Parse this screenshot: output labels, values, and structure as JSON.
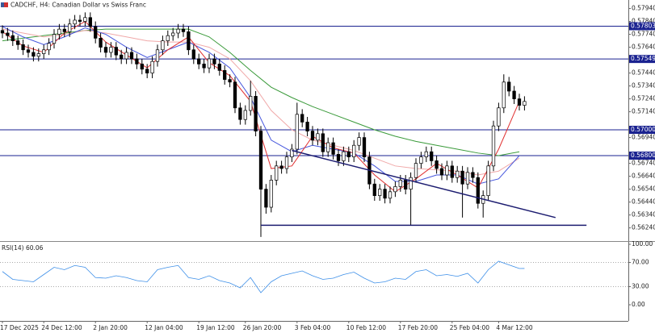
{
  "chart_data": {
    "type": "candlestick",
    "title": "CADCHF, H4:  Canadian Dollar vs Swiss Franc",
    "categories": [
      "17 Dec 2025",
      null,
      null,
      null,
      null,
      null,
      null,
      null,
      "24 Dec 12:00",
      null,
      null,
      null,
      null,
      null,
      null,
      null,
      null,
      null,
      "2 Jan 20:00",
      null,
      null,
      null,
      null,
      null,
      null,
      null,
      null,
      null,
      "12 Jan 04:00",
      null,
      null,
      null,
      null,
      null,
      null,
      null,
      null,
      null,
      "19 Jan 12:00",
      null,
      null,
      null,
      null,
      null,
      null,
      null,
      null,
      "26 Jan 20:00",
      null,
      null,
      null,
      null,
      null,
      null,
      null,
      null,
      null,
      "3 Feb 04:00",
      null,
      null,
      null,
      null,
      null,
      null,
      null,
      null,
      null,
      "10 Feb 12:00",
      null,
      null,
      null,
      null,
      null,
      null,
      null,
      null,
      null,
      "17 Feb 20:00",
      null,
      null,
      null,
      null,
      null,
      null,
      null,
      null,
      null,
      "25 Feb 04:00",
      null,
      null,
      null,
      null,
      null,
      null,
      null,
      null,
      "4 Mar 12:00",
      null,
      null,
      null,
      null,
      null
    ],
    "open": [
      0.5777,
      0.5775,
      0.5773,
      0.5769,
      0.5766,
      0.5762,
      0.576,
      0.5757,
      0.5759,
      0.5762,
      0.5767,
      0.5774,
      0.5778,
      0.5776,
      0.5782,
      0.5785,
      0.5784,
      0.5787,
      0.578,
      0.5771,
      0.5764,
      0.576,
      0.5764,
      0.5758,
      0.5755,
      0.576,
      0.5755,
      0.5751,
      0.5747,
      0.5744,
      0.5753,
      0.5762,
      0.5769,
      0.5773,
      0.5775,
      0.5778,
      0.5776,
      0.5762,
      0.5755,
      0.5751,
      0.5748,
      0.5755,
      0.5751,
      0.5746,
      0.5739,
      0.5737,
      0.5717,
      0.5708,
      0.5715,
      0.5726,
      0.5699,
      0.5654,
      0.564,
      0.5661,
      0.5672,
      0.567,
      0.5679,
      0.5685,
      0.5712,
      0.5706,
      0.5699,
      0.5692,
      0.5697,
      0.5683,
      0.569,
      0.5681,
      0.5676,
      0.5683,
      0.5679,
      0.5688,
      0.5694,
      0.5679,
      0.5658,
      0.5649,
      0.5654,
      0.5647,
      0.5652,
      0.5656,
      0.5661,
      0.5654,
      0.5663,
      0.5674,
      0.5679,
      0.5683,
      0.5676,
      0.567,
      0.5665,
      0.5672,
      0.5663,
      0.5668,
      0.5658,
      0.5667,
      0.5663,
      0.5643,
      0.5649,
      0.5672,
      0.5703,
      0.5717,
      0.5737,
      0.573,
      0.5724,
      0.5719
    ],
    "high": [
      0.5781,
      0.5779,
      0.5777,
      0.5773,
      0.577,
      0.5766,
      0.5764,
      0.5763,
      0.5766,
      0.5771,
      0.5778,
      0.5782,
      0.5782,
      0.5786,
      0.5789,
      0.5789,
      0.5791,
      0.5791,
      0.5784,
      0.5775,
      0.5768,
      0.5768,
      0.5768,
      0.5762,
      0.5764,
      0.5764,
      0.5759,
      0.5755,
      0.5751,
      0.5757,
      0.5766,
      0.5773,
      0.5777,
      0.5779,
      0.5782,
      0.5782,
      0.578,
      0.5766,
      0.5759,
      0.5755,
      0.5759,
      0.5759,
      0.5755,
      0.575,
      0.5743,
      0.5741,
      0.5721,
      0.5719,
      0.5738,
      0.573,
      0.5703,
      0.5658,
      0.5665,
      0.5676,
      0.5676,
      0.5683,
      0.5689,
      0.5721,
      0.5716,
      0.571,
      0.5703,
      0.5701,
      0.5701,
      0.5694,
      0.5694,
      0.5685,
      0.5687,
      0.5687,
      0.5692,
      0.5698,
      0.5698,
      0.5683,
      0.5662,
      0.5658,
      0.5658,
      0.5656,
      0.566,
      0.5665,
      0.5665,
      0.5667,
      0.5678,
      0.5683,
      0.5687,
      0.5687,
      0.568,
      0.5674,
      0.5676,
      0.5676,
      0.5672,
      0.5672,
      0.5671,
      0.5671,
      0.5667,
      0.5653,
      0.5676,
      0.5707,
      0.5721,
      0.5743,
      0.5741,
      0.5734,
      0.5728,
      0.5726
    ],
    "low": [
      0.5771,
      0.5769,
      0.5765,
      0.5762,
      0.5758,
      0.5756,
      0.5753,
      0.5753,
      0.5755,
      0.5758,
      0.5763,
      0.577,
      0.5772,
      0.5772,
      0.5778,
      0.578,
      0.578,
      0.5776,
      0.5767,
      0.576,
      0.5756,
      0.5756,
      0.5754,
      0.5751,
      0.5751,
      0.5751,
      0.5747,
      0.5743,
      0.574,
      0.574,
      0.5749,
      0.5758,
      0.5765,
      0.5769,
      0.5771,
      0.5772,
      0.5758,
      0.5751,
      0.5747,
      0.5744,
      0.5744,
      0.5747,
      0.5742,
      0.5735,
      0.5733,
      0.5713,
      0.5704,
      0.5704,
      0.5711,
      0.5695,
      0.5617,
      0.5635,
      0.5636,
      0.5657,
      0.5666,
      0.5666,
      0.5675,
      0.5681,
      0.5702,
      0.5695,
      0.5688,
      0.5688,
      0.5679,
      0.5679,
      0.5677,
      0.5672,
      0.5672,
      0.5675,
      0.5675,
      0.5684,
      0.5675,
      0.5654,
      0.5645,
      0.5645,
      0.5643,
      0.5643,
      0.5648,
      0.5652,
      0.565,
      0.5626,
      0.5659,
      0.567,
      0.5675,
      0.5672,
      0.5666,
      0.5661,
      0.5661,
      0.5659,
      0.5659,
      0.5632,
      0.5654,
      0.5659,
      0.5639,
      0.5632,
      0.5645,
      0.5668,
      0.5699,
      0.5713,
      0.5726,
      0.572,
      0.5715,
      0.5715
    ],
    "close": [
      0.5775,
      0.5773,
      0.5769,
      0.5766,
      0.5762,
      0.576,
      0.5757,
      0.5759,
      0.5762,
      0.5767,
      0.5774,
      0.5778,
      0.5776,
      0.5782,
      0.5785,
      0.5784,
      0.5787,
      0.578,
      0.5771,
      0.5764,
      0.576,
      0.5764,
      0.5758,
      0.5755,
      0.576,
      0.5755,
      0.5751,
      0.5747,
      0.5744,
      0.5753,
      0.5762,
      0.5769,
      0.5773,
      0.5775,
      0.5778,
      0.5776,
      0.5762,
      0.5755,
      0.5751,
      0.5748,
      0.5755,
      0.5751,
      0.5746,
      0.5739,
      0.5737,
      0.5717,
      0.5708,
      0.5715,
      0.5726,
      0.5699,
      0.5654,
      0.564,
      0.5661,
      0.5672,
      0.567,
      0.5679,
      0.5685,
      0.5712,
      0.5706,
      0.5699,
      0.5692,
      0.5697,
      0.5683,
      0.569,
      0.5681,
      0.5676,
      0.5683,
      0.5679,
      0.5688,
      0.5694,
      0.5679,
      0.5658,
      0.5649,
      0.5654,
      0.5647,
      0.5652,
      0.5656,
      0.5661,
      0.5654,
      0.5663,
      0.5674,
      0.5679,
      0.5683,
      0.5676,
      0.567,
      0.5665,
      0.5672,
      0.5663,
      0.5668,
      0.5658,
      0.5667,
      0.5663,
      0.5643,
      0.5649,
      0.5672,
      0.5703,
      0.5717,
      0.5737,
      0.573,
      0.5724,
      0.5719,
      0.5722
    ],
    "bull_color": "#ffffff",
    "bear_color": "#000000",
    "ylim": [
      0.56144,
      0.58006
    ],
    "yticks": [
      {
        "value": 0.5794,
        "label": "0.57940"
      },
      {
        "value": 0.5784,
        "label": "0.57840"
      },
      {
        "value": 0.5774,
        "label": "0.57740"
      },
      {
        "value": 0.5764,
        "label": "0.57640"
      },
      {
        "value": 0.5744,
        "label": "0.57440"
      },
      {
        "value": 0.5734,
        "label": "0.57340"
      },
      {
        "value": 0.5724,
        "label": "0.57240"
      },
      {
        "value": 0.5714,
        "label": "0.57140"
      },
      {
        "value": 0.5694,
        "label": "0.56940"
      },
      {
        "value": 0.5674,
        "label": "0.56740"
      },
      {
        "value": 0.5664,
        "label": "0.56640"
      },
      {
        "value": 0.5654,
        "label": "0.56540"
      },
      {
        "value": 0.5644,
        "label": "0.56440"
      },
      {
        "value": 0.5634,
        "label": "0.56340"
      },
      {
        "value": 0.5624,
        "label": "0.56240"
      }
    ],
    "levels": [
      0.57803,
      0.57549,
      {
        "value": 0.57,
        "label": "0.57000"
      },
      {
        "value": 0.568,
        "label": "0.56800"
      }
    ],
    "level_color": "#1a2290",
    "moving_averages": [
      {
        "color": "#3a9a3a",
        "x": [
          0,
          4,
          8,
          12,
          16,
          20,
          24,
          28,
          32,
          36,
          40,
          44,
          48,
          52,
          56,
          60,
          64,
          68,
          72,
          76,
          80,
          84,
          88,
          92,
          96,
          100
        ],
        "values": [
          0.5769,
          0.5771,
          0.5773,
          0.5775,
          0.5777,
          0.5778,
          0.5778,
          0.5778,
          0.5778,
          0.5778,
          0.5772,
          0.576,
          0.5746,
          0.5733,
          0.5725,
          0.5718,
          0.5712,
          0.5706,
          0.57,
          0.5695,
          0.5691,
          0.5688,
          0.5685,
          0.5682,
          0.568,
          0.5683
        ]
      },
      {
        "color": "#f0a8a8",
        "x": [
          0,
          4,
          8,
          12,
          16,
          20,
          24,
          28,
          32,
          36,
          40,
          44,
          48,
          52,
          56,
          60,
          64,
          68,
          72,
          76,
          80,
          84,
          88,
          92,
          96,
          100
        ],
        "values": [
          0.5778,
          0.5775,
          0.5772,
          0.5774,
          0.5777,
          0.5775,
          0.5772,
          0.5769,
          0.5768,
          0.5768,
          0.5764,
          0.5755,
          0.5738,
          0.5715,
          0.57,
          0.5692,
          0.5688,
          0.5684,
          0.5678,
          0.5672,
          0.567,
          0.5669,
          0.5668,
          0.5665,
          0.5668,
          0.5678
        ]
      },
      {
        "color": "#4455dd",
        "x": [
          0,
          4,
          8,
          12,
          16,
          20,
          24,
          28,
          32,
          36,
          40,
          44,
          48,
          52,
          56,
          60,
          64,
          68,
          72,
          76,
          80,
          84,
          88,
          92,
          96,
          100
        ],
        "values": [
          0.578,
          0.5772,
          0.5766,
          0.5772,
          0.5779,
          0.5774,
          0.5764,
          0.5756,
          0.5762,
          0.5768,
          0.576,
          0.5748,
          0.5725,
          0.5692,
          0.5683,
          0.5688,
          0.5685,
          0.5682,
          0.5672,
          0.566,
          0.566,
          0.5665,
          0.5665,
          0.5658,
          0.5662,
          0.568
        ]
      },
      {
        "color": "#e03030",
        "x": [
          0,
          4,
          8,
          12,
          16,
          20,
          24,
          28,
          32,
          36,
          40,
          44,
          48,
          52,
          56,
          60,
          64,
          68,
          72,
          76,
          80,
          84,
          88,
          92,
          96,
          100
        ],
        "values": [
          0.5776,
          0.5765,
          0.576,
          0.5775,
          0.5784,
          0.5768,
          0.5758,
          0.5748,
          0.5762,
          0.5772,
          0.5752,
          0.5742,
          0.5722,
          0.567,
          0.5672,
          0.5695,
          0.5686,
          0.5682,
          0.5665,
          0.5652,
          0.5662,
          0.5674,
          0.5665,
          0.5655,
          0.5685,
          0.5722
        ]
      }
    ],
    "trendlines": [
      {
        "color": "#1c1c70",
        "x": [
          56,
          107
        ],
        "values": [
          0.5684,
          0.5632
        ]
      },
      {
        "color": "#1c1c70",
        "x": [
          50,
          113
        ],
        "values": [
          0.5626,
          0.5626
        ]
      }
    ],
    "rsi": {
      "title": "RSI(14) 60.06",
      "color": "#3d8fe8",
      "ylim": [
        0,
        100
      ],
      "yticks": [
        {
          "value": 100,
          "label": "100.00"
        },
        {
          "value": 70,
          "label": "70.00"
        },
        {
          "value": 30,
          "label": "30.00"
        },
        {
          "value": 0,
          "label": "0.00"
        }
      ],
      "levels": [
        70,
        30
      ],
      "x": [
        0,
        2,
        4,
        6,
        8,
        10,
        12,
        14,
        16,
        18,
        20,
        22,
        24,
        26,
        28,
        30,
        32,
        34,
        36,
        38,
        40,
        42,
        44,
        46,
        48,
        50,
        52,
        54,
        56,
        58,
        60,
        62,
        64,
        66,
        68,
        70,
        72,
        74,
        76,
        78,
        80,
        82,
        84,
        86,
        88,
        90,
        92,
        94,
        96,
        98,
        100,
        101
      ],
      "values": [
        55,
        42,
        40,
        38,
        50,
        62,
        58,
        65,
        62,
        45,
        44,
        48,
        45,
        40,
        38,
        58,
        62,
        65,
        45,
        42,
        48,
        40,
        36,
        28,
        45,
        20,
        38,
        48,
        52,
        56,
        48,
        42,
        44,
        50,
        54,
        44,
        36,
        38,
        44,
        42,
        55,
        58,
        48,
        50,
        47,
        52,
        36,
        58,
        72,
        66,
        60,
        60.06
      ]
    }
  }
}
